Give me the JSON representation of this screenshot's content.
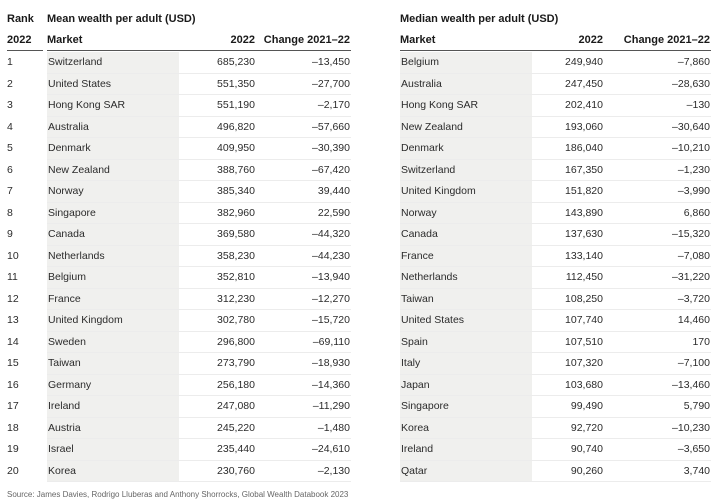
{
  "header": {
    "rank": "Rank",
    "year": "2022",
    "left_title": "Mean wealth per adult (USD)",
    "right_title": "Median wealth per adult (USD)",
    "col_market": "Market",
    "col_year": "2022",
    "col_change": "Change 2021–22"
  },
  "ranks": [
    "1",
    "2",
    "3",
    "4",
    "5",
    "6",
    "7",
    "8",
    "9",
    "10",
    "11",
    "12",
    "13",
    "14",
    "15",
    "16",
    "17",
    "18",
    "19",
    "20"
  ],
  "mean": [
    {
      "market": "Switzerland",
      "value": "685,230",
      "change": "–13,450"
    },
    {
      "market": "United States",
      "value": "551,350",
      "change": "–27,700"
    },
    {
      "market": "Hong Kong SAR",
      "value": "551,190",
      "change": "–2,170"
    },
    {
      "market": "Australia",
      "value": "496,820",
      "change": "–57,660"
    },
    {
      "market": "Denmark",
      "value": "409,950",
      "change": "–30,390"
    },
    {
      "market": "New Zealand",
      "value": "388,760",
      "change": "–67,420"
    },
    {
      "market": "Norway",
      "value": "385,340",
      "change": "39,440"
    },
    {
      "market": "Singapore",
      "value": "382,960",
      "change": "22,590"
    },
    {
      "market": "Canada",
      "value": "369,580",
      "change": "–44,320"
    },
    {
      "market": "Netherlands",
      "value": "358,230",
      "change": "–44,230"
    },
    {
      "market": "Belgium",
      "value": "352,810",
      "change": "–13,940"
    },
    {
      "market": "France",
      "value": "312,230",
      "change": "–12,270"
    },
    {
      "market": "United Kingdom",
      "value": "302,780",
      "change": "–15,720"
    },
    {
      "market": "Sweden",
      "value": "296,800",
      "change": "–69,110"
    },
    {
      "market": "Taiwan",
      "value": "273,790",
      "change": "–18,930"
    },
    {
      "market": "Germany",
      "value": "256,180",
      "change": "–14,360"
    },
    {
      "market": "Ireland",
      "value": "247,080",
      "change": "–11,290"
    },
    {
      "market": "Austria",
      "value": "245,220",
      "change": "–1,480"
    },
    {
      "market": "Israel",
      "value": "235,440",
      "change": "–24,610"
    },
    {
      "market": "Korea",
      "value": "230,760",
      "change": "–2,130"
    }
  ],
  "median": [
    {
      "market": "Belgium",
      "value": "249,940",
      "change": "–7,860"
    },
    {
      "market": "Australia",
      "value": "247,450",
      "change": "–28,630"
    },
    {
      "market": "Hong Kong SAR",
      "value": "202,410",
      "change": "–130"
    },
    {
      "market": "New Zealand",
      "value": "193,060",
      "change": "–30,640"
    },
    {
      "market": "Denmark",
      "value": "186,040",
      "change": "–10,210"
    },
    {
      "market": "Switzerland",
      "value": "167,350",
      "change": "–1,230"
    },
    {
      "market": "United Kingdom",
      "value": "151,820",
      "change": "–3,990"
    },
    {
      "market": "Norway",
      "value": "143,890",
      "change": "6,860"
    },
    {
      "market": "Canada",
      "value": "137,630",
      "change": "–15,320"
    },
    {
      "market": "France",
      "value": "133,140",
      "change": "–7,080"
    },
    {
      "market": "Netherlands",
      "value": "112,450",
      "change": "–31,220"
    },
    {
      "market": "Taiwan",
      "value": "108,250",
      "change": "–3,720"
    },
    {
      "market": "United States",
      "value": "107,740",
      "change": "14,460"
    },
    {
      "market": "Spain",
      "value": "107,510",
      "change": "170"
    },
    {
      "market": "Italy",
      "value": "107,320",
      "change": "–7,100"
    },
    {
      "market": "Japan",
      "value": "103,680",
      "change": "–13,460"
    },
    {
      "market": "Singapore",
      "value": "99,490",
      "change": "5,790"
    },
    {
      "market": "Korea",
      "value": "92,720",
      "change": "–10,230"
    },
    {
      "market": "Ireland",
      "value": "90,740",
      "change": "–3,650"
    },
    {
      "market": "Qatar",
      "value": "90,260",
      "change": "3,740"
    }
  ],
  "source": "Source: James Davies, Rodrigo Lluberas and Anthony Shorrocks, Global Wealth Databook 2023"
}
